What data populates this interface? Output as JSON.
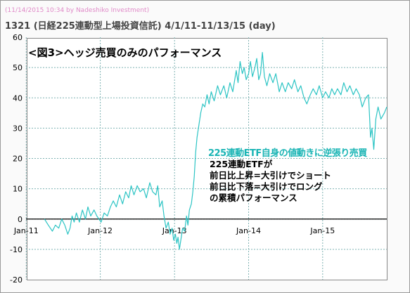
{
  "header": {
    "watermark": "(11/14/2015 10:34 by Nadeshiko Investment)",
    "title": "1321 (日経225連動型上場投資信託) 4/1/11-11/13/15 (day)"
  },
  "annotations": {
    "figure_label": "<図3>ヘッジ売買のみのパフォーマンス",
    "highlight": "225連動ETF自身の値動きに逆張り売買",
    "lines": [
      "225連動ETFが",
      "前日比上昇=大引けでショート",
      "前日比下落=大引けでロング",
      "の累積パフォーマンス"
    ]
  },
  "colors": {
    "line": "#2cc4c4",
    "grid": "#7fb2b2",
    "watermark": "#e08ac8",
    "highlight_text": "#18b4b4"
  },
  "chart_data": {
    "type": "line",
    "title": "1321 (日経225連動型上場投資信託) 4/1/11-11/13/15 (day)",
    "x_axis": {
      "range": [
        "2010-12-31",
        "2015-11-13"
      ],
      "ticks": [
        {
          "date": "2011-01-01",
          "label": "Jan-11"
        },
        {
          "date": "2012-01-01",
          "label": "Jan-12"
        },
        {
          "date": "2013-01-01",
          "label": "Jan-13"
        },
        {
          "date": "2014-01-01",
          "label": "Jan-14"
        },
        {
          "date": "2015-01-01",
          "label": "Jan-15"
        }
      ]
    },
    "y_axis": {
      "range": [
        -20,
        60
      ],
      "ticks": [
        -20,
        -10,
        0,
        10,
        20,
        30,
        40,
        50,
        60
      ]
    },
    "grid": true,
    "series": [
      {
        "points": [
          [
            "2011-04-01",
            0
          ],
          [
            "2011-04-20",
            -2
          ],
          [
            "2011-05-10",
            -4
          ],
          [
            "2011-05-25",
            -2
          ],
          [
            "2011-06-10",
            -3
          ],
          [
            "2011-06-25",
            0
          ],
          [
            "2011-07-10",
            -2
          ],
          [
            "2011-07-25",
            -5
          ],
          [
            "2011-08-05",
            -3
          ],
          [
            "2011-08-15",
            1
          ],
          [
            "2011-08-25",
            -1
          ],
          [
            "2011-09-05",
            2
          ],
          [
            "2011-09-20",
            -1
          ],
          [
            "2011-10-05",
            3
          ],
          [
            "2011-10-20",
            0
          ],
          [
            "2011-11-01",
            4
          ],
          [
            "2011-11-15",
            1
          ],
          [
            "2011-12-01",
            3
          ],
          [
            "2011-12-15",
            1
          ],
          [
            "2012-01-05",
            -1
          ],
          [
            "2012-01-20",
            2
          ],
          [
            "2012-02-05",
            1
          ],
          [
            "2012-02-20",
            4
          ],
          [
            "2012-03-05",
            6
          ],
          [
            "2012-03-20",
            4
          ],
          [
            "2012-04-05",
            8
          ],
          [
            "2012-04-20",
            5
          ],
          [
            "2012-05-05",
            9
          ],
          [
            "2012-05-20",
            7
          ],
          [
            "2012-06-01",
            11
          ],
          [
            "2012-06-15",
            8
          ],
          [
            "2012-07-01",
            11
          ],
          [
            "2012-07-15",
            9
          ],
          [
            "2012-08-01",
            10
          ],
          [
            "2012-08-15",
            7
          ],
          [
            "2012-09-01",
            12
          ],
          [
            "2012-09-15",
            9
          ],
          [
            "2012-10-01",
            8
          ],
          [
            "2012-10-10",
            11
          ],
          [
            "2012-10-20",
            4
          ],
          [
            "2012-11-01",
            6
          ],
          [
            "2012-11-10",
            1
          ],
          [
            "2012-11-20",
            -3
          ],
          [
            "2012-12-01",
            -1
          ],
          [
            "2012-12-10",
            -5
          ],
          [
            "2012-12-20",
            -3
          ],
          [
            "2012-12-28",
            -7
          ],
          [
            "2013-01-05",
            -5
          ],
          [
            "2013-01-12",
            -8
          ],
          [
            "2013-01-18",
            -6
          ],
          [
            "2013-01-25",
            -10
          ],
          [
            "2013-02-01",
            -7
          ],
          [
            "2013-02-10",
            -3
          ],
          [
            "2013-02-20",
            -4
          ],
          [
            "2013-03-01",
            1
          ],
          [
            "2013-03-08",
            -2
          ],
          [
            "2013-03-15",
            3
          ],
          [
            "2013-03-25",
            5
          ],
          [
            "2013-04-01",
            9
          ],
          [
            "2013-04-08",
            14
          ],
          [
            "2013-04-15",
            22
          ],
          [
            "2013-04-22",
            27
          ],
          [
            "2013-05-01",
            31
          ],
          [
            "2013-05-10",
            35
          ],
          [
            "2013-05-20",
            38
          ],
          [
            "2013-05-30",
            37
          ],
          [
            "2013-06-10",
            41
          ],
          [
            "2013-06-20",
            38
          ],
          [
            "2013-07-01",
            42
          ],
          [
            "2013-07-15",
            39
          ],
          [
            "2013-08-01",
            44
          ],
          [
            "2013-08-15",
            41
          ],
          [
            "2013-09-01",
            44
          ],
          [
            "2013-09-15",
            40
          ],
          [
            "2013-10-01",
            45
          ],
          [
            "2013-10-15",
            42
          ],
          [
            "2013-11-01",
            49
          ],
          [
            "2013-11-10",
            45
          ],
          [
            "2013-11-20",
            52
          ],
          [
            "2013-12-01",
            48
          ],
          [
            "2013-12-10",
            50
          ],
          [
            "2013-12-20",
            46
          ],
          [
            "2014-01-01",
            48
          ],
          [
            "2014-01-10",
            52
          ],
          [
            "2014-01-20",
            47
          ],
          [
            "2014-02-01",
            50
          ],
          [
            "2014-02-10",
            53
          ],
          [
            "2014-02-20",
            46
          ],
          [
            "2014-03-01",
            48
          ],
          [
            "2014-03-10",
            55
          ],
          [
            "2014-03-20",
            47
          ],
          [
            "2014-04-01",
            44
          ],
          [
            "2014-04-15",
            48
          ],
          [
            "2014-05-01",
            45
          ],
          [
            "2014-05-15",
            48
          ],
          [
            "2014-06-01",
            42
          ],
          [
            "2014-06-15",
            45
          ],
          [
            "2014-07-01",
            42
          ],
          [
            "2014-07-15",
            45
          ],
          [
            "2014-08-01",
            43
          ],
          [
            "2014-08-15",
            46
          ],
          [
            "2014-09-01",
            42
          ],
          [
            "2014-09-15",
            44
          ],
          [
            "2014-10-01",
            40
          ],
          [
            "2014-10-15",
            38
          ],
          [
            "2014-11-01",
            41
          ],
          [
            "2014-11-15",
            43
          ],
          [
            "2014-12-01",
            41
          ],
          [
            "2014-12-15",
            44
          ],
          [
            "2015-01-01",
            40
          ],
          [
            "2015-01-15",
            42
          ],
          [
            "2015-02-01",
            40
          ],
          [
            "2015-02-15",
            43
          ],
          [
            "2015-03-01",
            41
          ],
          [
            "2015-03-15",
            43
          ],
          [
            "2015-04-01",
            41
          ],
          [
            "2015-04-15",
            45
          ],
          [
            "2015-05-01",
            42
          ],
          [
            "2015-05-15",
            44
          ],
          [
            "2015-06-01",
            41
          ],
          [
            "2015-06-15",
            43
          ],
          [
            "2015-07-01",
            41
          ],
          [
            "2015-07-15",
            37
          ],
          [
            "2015-08-01",
            40
          ],
          [
            "2015-08-15",
            41
          ],
          [
            "2015-08-25",
            27
          ],
          [
            "2015-09-01",
            30
          ],
          [
            "2015-09-10",
            23
          ],
          [
            "2015-09-20",
            33
          ],
          [
            "2015-10-01",
            37
          ],
          [
            "2015-10-15",
            33
          ],
          [
            "2015-11-01",
            35
          ],
          [
            "2015-11-13",
            37
          ]
        ]
      }
    ]
  }
}
